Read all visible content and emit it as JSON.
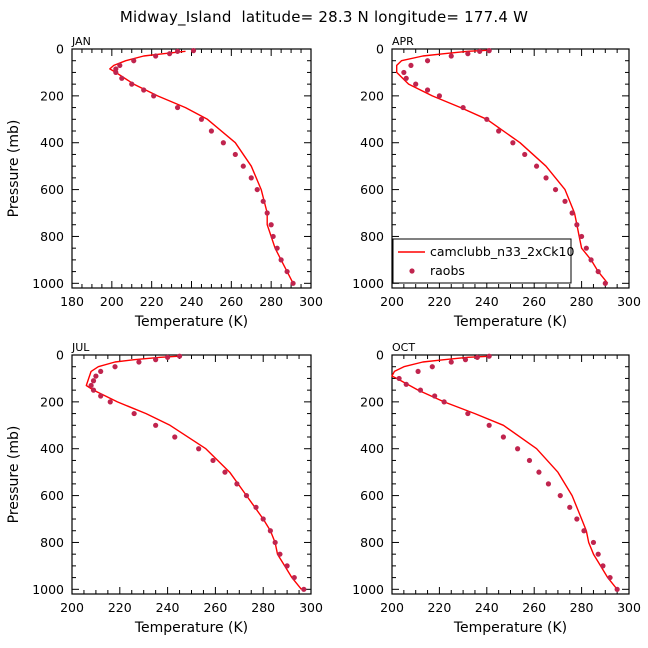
{
  "title": "Midway_Island  latitude= 28.3 N longitude= 177.4 W",
  "chart_data": [
    {
      "type": "line",
      "panel": "JAN",
      "xlabel": "Temperature (K)",
      "ylabel": "Pressure (mb)",
      "xlim": [
        180,
        300
      ],
      "ylim": [
        1020,
        0
      ],
      "xticks": [
        180,
        200,
        220,
        240,
        260,
        280,
        300
      ],
      "yticks": [
        0,
        200,
        400,
        600,
        800,
        1000
      ],
      "series": [
        {
          "name": "camclubb_n33_2xCk10",
          "type": "line",
          "color": "#ff0000",
          "pressure": [
            10,
            20,
            30,
            50,
            70,
            85,
            100,
            150,
            200,
            250,
            300,
            400,
            500,
            600,
            700,
            750,
            800,
            850,
            900,
            950,
            1000
          ],
          "temperature": [
            237,
            226,
            216,
            207,
            201,
            199,
            202,
            211,
            223,
            237,
            248,
            262,
            270,
            275,
            278,
            278,
            280,
            282,
            285,
            288,
            291
          ]
        },
        {
          "name": "raobs",
          "type": "scatter",
          "color": "#c0244e",
          "pressure": [
            7,
            10,
            20,
            30,
            50,
            70,
            85,
            100,
            125,
            150,
            175,
            200,
            250,
            300,
            350,
            400,
            450,
            500,
            550,
            600,
            650,
            700,
            750,
            800,
            850,
            900,
            950,
            1000
          ],
          "temperature": [
            241,
            233,
            229,
            222,
            211,
            204,
            202,
            202,
            205,
            210,
            216,
            221,
            233,
            245,
            250,
            256,
            262,
            266,
            270,
            273,
            276,
            278,
            280,
            281,
            283,
            285,
            288,
            291
          ]
        }
      ]
    },
    {
      "type": "line",
      "panel": "APR",
      "xlabel": "Temperature (K)",
      "ylabel": "",
      "xlim": [
        200,
        300
      ],
      "ylim": [
        1020,
        0
      ],
      "xticks": [
        200,
        220,
        240,
        260,
        280,
        300
      ],
      "yticks": [
        0,
        200,
        400,
        600,
        800,
        1000
      ],
      "legend": {
        "location": "lower-left",
        "entries": [
          "camclubb_n33_2xCk10",
          "raobs"
        ]
      },
      "series": [
        {
          "name": "camclubb_n33_2xCk10",
          "type": "line",
          "color": "#ff0000",
          "pressure": [
            5,
            10,
            20,
            30,
            50,
            70,
            100,
            150,
            200,
            250,
            300,
            400,
            500,
            600,
            700,
            750,
            800,
            850,
            900,
            950,
            1000
          ],
          "temperature": [
            241,
            232,
            222,
            213,
            204,
            202,
            202,
            207,
            217,
            229,
            240,
            254,
            265,
            273,
            277,
            278,
            279,
            280,
            284,
            287,
            291
          ]
        },
        {
          "name": "raobs",
          "type": "scatter",
          "color": "#c0244e",
          "pressure": [
            7,
            10,
            20,
            30,
            50,
            70,
            100,
            125,
            150,
            175,
            200,
            250,
            300,
            350,
            400,
            450,
            500,
            550,
            600,
            650,
            700,
            750,
            800,
            850,
            900,
            950,
            1000
          ],
          "temperature": [
            241,
            237,
            232,
            225,
            215,
            208,
            205,
            206,
            210,
            215,
            220,
            230,
            240,
            245,
            251,
            256,
            261,
            265,
            269,
            273,
            276,
            278,
            280,
            282,
            284,
            287,
            290
          ]
        }
      ]
    },
    {
      "type": "line",
      "panel": "JUL",
      "xlabel": "Temperature (K)",
      "ylabel": "Pressure (mb)",
      "xlim": [
        200,
        300
      ],
      "ylim": [
        1020,
        0
      ],
      "xticks": [
        200,
        220,
        240,
        260,
        280,
        300
      ],
      "yticks": [
        0,
        200,
        400,
        600,
        800,
        1000
      ],
      "series": [
        {
          "name": "camclubb_n33_2xCk10",
          "type": "line",
          "color": "#ff0000",
          "pressure": [
            5,
            10,
            20,
            30,
            50,
            70,
            100,
            130,
            150,
            200,
            250,
            300,
            400,
            500,
            600,
            700,
            750,
            800,
            850,
            900,
            950,
            1000
          ],
          "temperature": [
            245,
            237,
            226,
            218,
            211,
            208,
            207,
            206,
            209,
            219,
            231,
            241,
            256,
            266,
            273,
            280,
            283,
            285,
            286,
            289,
            292,
            296
          ]
        },
        {
          "name": "raobs",
          "type": "scatter",
          "color": "#c0244e",
          "pressure": [
            5,
            10,
            20,
            30,
            50,
            70,
            90,
            110,
            130,
            150,
            175,
            200,
            250,
            300,
            350,
            400,
            450,
            500,
            550,
            600,
            650,
            700,
            750,
            800,
            850,
            900,
            950,
            1000
          ],
          "temperature": [
            245,
            240,
            235,
            228,
            218,
            212,
            210,
            209,
            208,
            209,
            212,
            216,
            226,
            235,
            243,
            253,
            259,
            264,
            269,
            273,
            277,
            280,
            283,
            285,
            287,
            290,
            293,
            297
          ]
        }
      ]
    },
    {
      "type": "line",
      "panel": "OCT",
      "xlabel": "Temperature (K)",
      "ylabel": "",
      "xlim": [
        200,
        300
      ],
      "ylim": [
        1020,
        0
      ],
      "xticks": [
        200,
        220,
        240,
        260,
        280,
        300
      ],
      "yticks": [
        0,
        200,
        400,
        600,
        800,
        1000
      ],
      "series": [
        {
          "name": "camclubb_n33_2xCk10",
          "type": "line",
          "color": "#ff0000",
          "pressure": [
            5,
            10,
            20,
            30,
            50,
            70,
            90,
            100,
            150,
            200,
            250,
            300,
            400,
            500,
            600,
            700,
            750,
            800,
            850,
            900,
            950,
            1000
          ],
          "temperature": [
            242,
            232,
            222,
            213,
            205,
            201,
            200,
            202,
            211,
            222,
            235,
            247,
            261,
            270,
            276,
            280,
            282,
            283,
            285,
            288,
            291,
            295
          ]
        },
        {
          "name": "raobs",
          "type": "scatter",
          "color": "#c0244e",
          "pressure": [
            5,
            10,
            20,
            30,
            50,
            70,
            100,
            125,
            150,
            175,
            200,
            250,
            300,
            350,
            400,
            450,
            500,
            550,
            600,
            650,
            700,
            750,
            800,
            850,
            900,
            950,
            1000
          ],
          "temperature": [
            241,
            236,
            231,
            225,
            217,
            211,
            203,
            206,
            212,
            218,
            222,
            232,
            241,
            247,
            253,
            258,
            262,
            266,
            271,
            275,
            278,
            281,
            285,
            287,
            289,
            292,
            295
          ]
        }
      ]
    }
  ]
}
